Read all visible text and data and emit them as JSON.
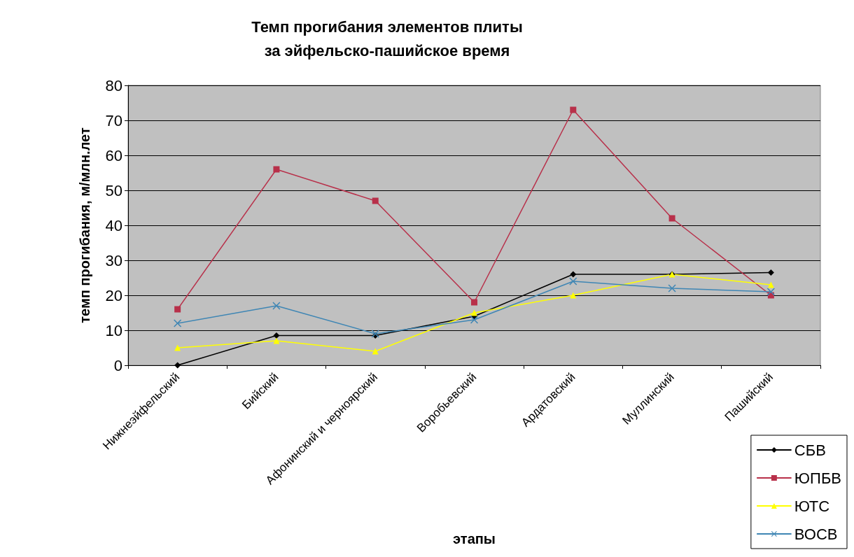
{
  "chart_data": {
    "type": "line",
    "title": "Темп прогибания элементов плиты\nза эйфельско-пашийское время",
    "xlabel": "этапы",
    "ylabel": "темп прогибания, м/млн.лет",
    "categories": [
      "Нижнеэйфельский",
      "Бийский",
      "Афонинский и черноярский",
      "Воробьевский",
      "Ардатовский",
      "Муллинский",
      "Пашийский"
    ],
    "series": [
      {
        "name": "СБВ",
        "color": "#000000",
        "marker": "diamond",
        "values": [
          0,
          8.5,
          8.5,
          14,
          26,
          26,
          26.5
        ]
      },
      {
        "name": "ЮПБВ",
        "color": "#b8304a",
        "marker": "square",
        "values": [
          16,
          56,
          47,
          18,
          73,
          42,
          20
        ]
      },
      {
        "name": "ЮТС",
        "color": "#ffff00",
        "marker": "triangle",
        "values": [
          5,
          7,
          4,
          15,
          20,
          26,
          23
        ]
      },
      {
        "name": "ВОСВ",
        "color": "#3f86b4",
        "marker": "cross",
        "values": [
          12,
          17,
          9,
          13,
          24,
          22,
          21
        ]
      }
    ],
    "ylim": [
      0,
      80
    ],
    "yticks": [
      0,
      10,
      20,
      30,
      40,
      50,
      60,
      70,
      80
    ],
    "grid": "y",
    "legend": "bottom right",
    "line_style": "solid"
  }
}
